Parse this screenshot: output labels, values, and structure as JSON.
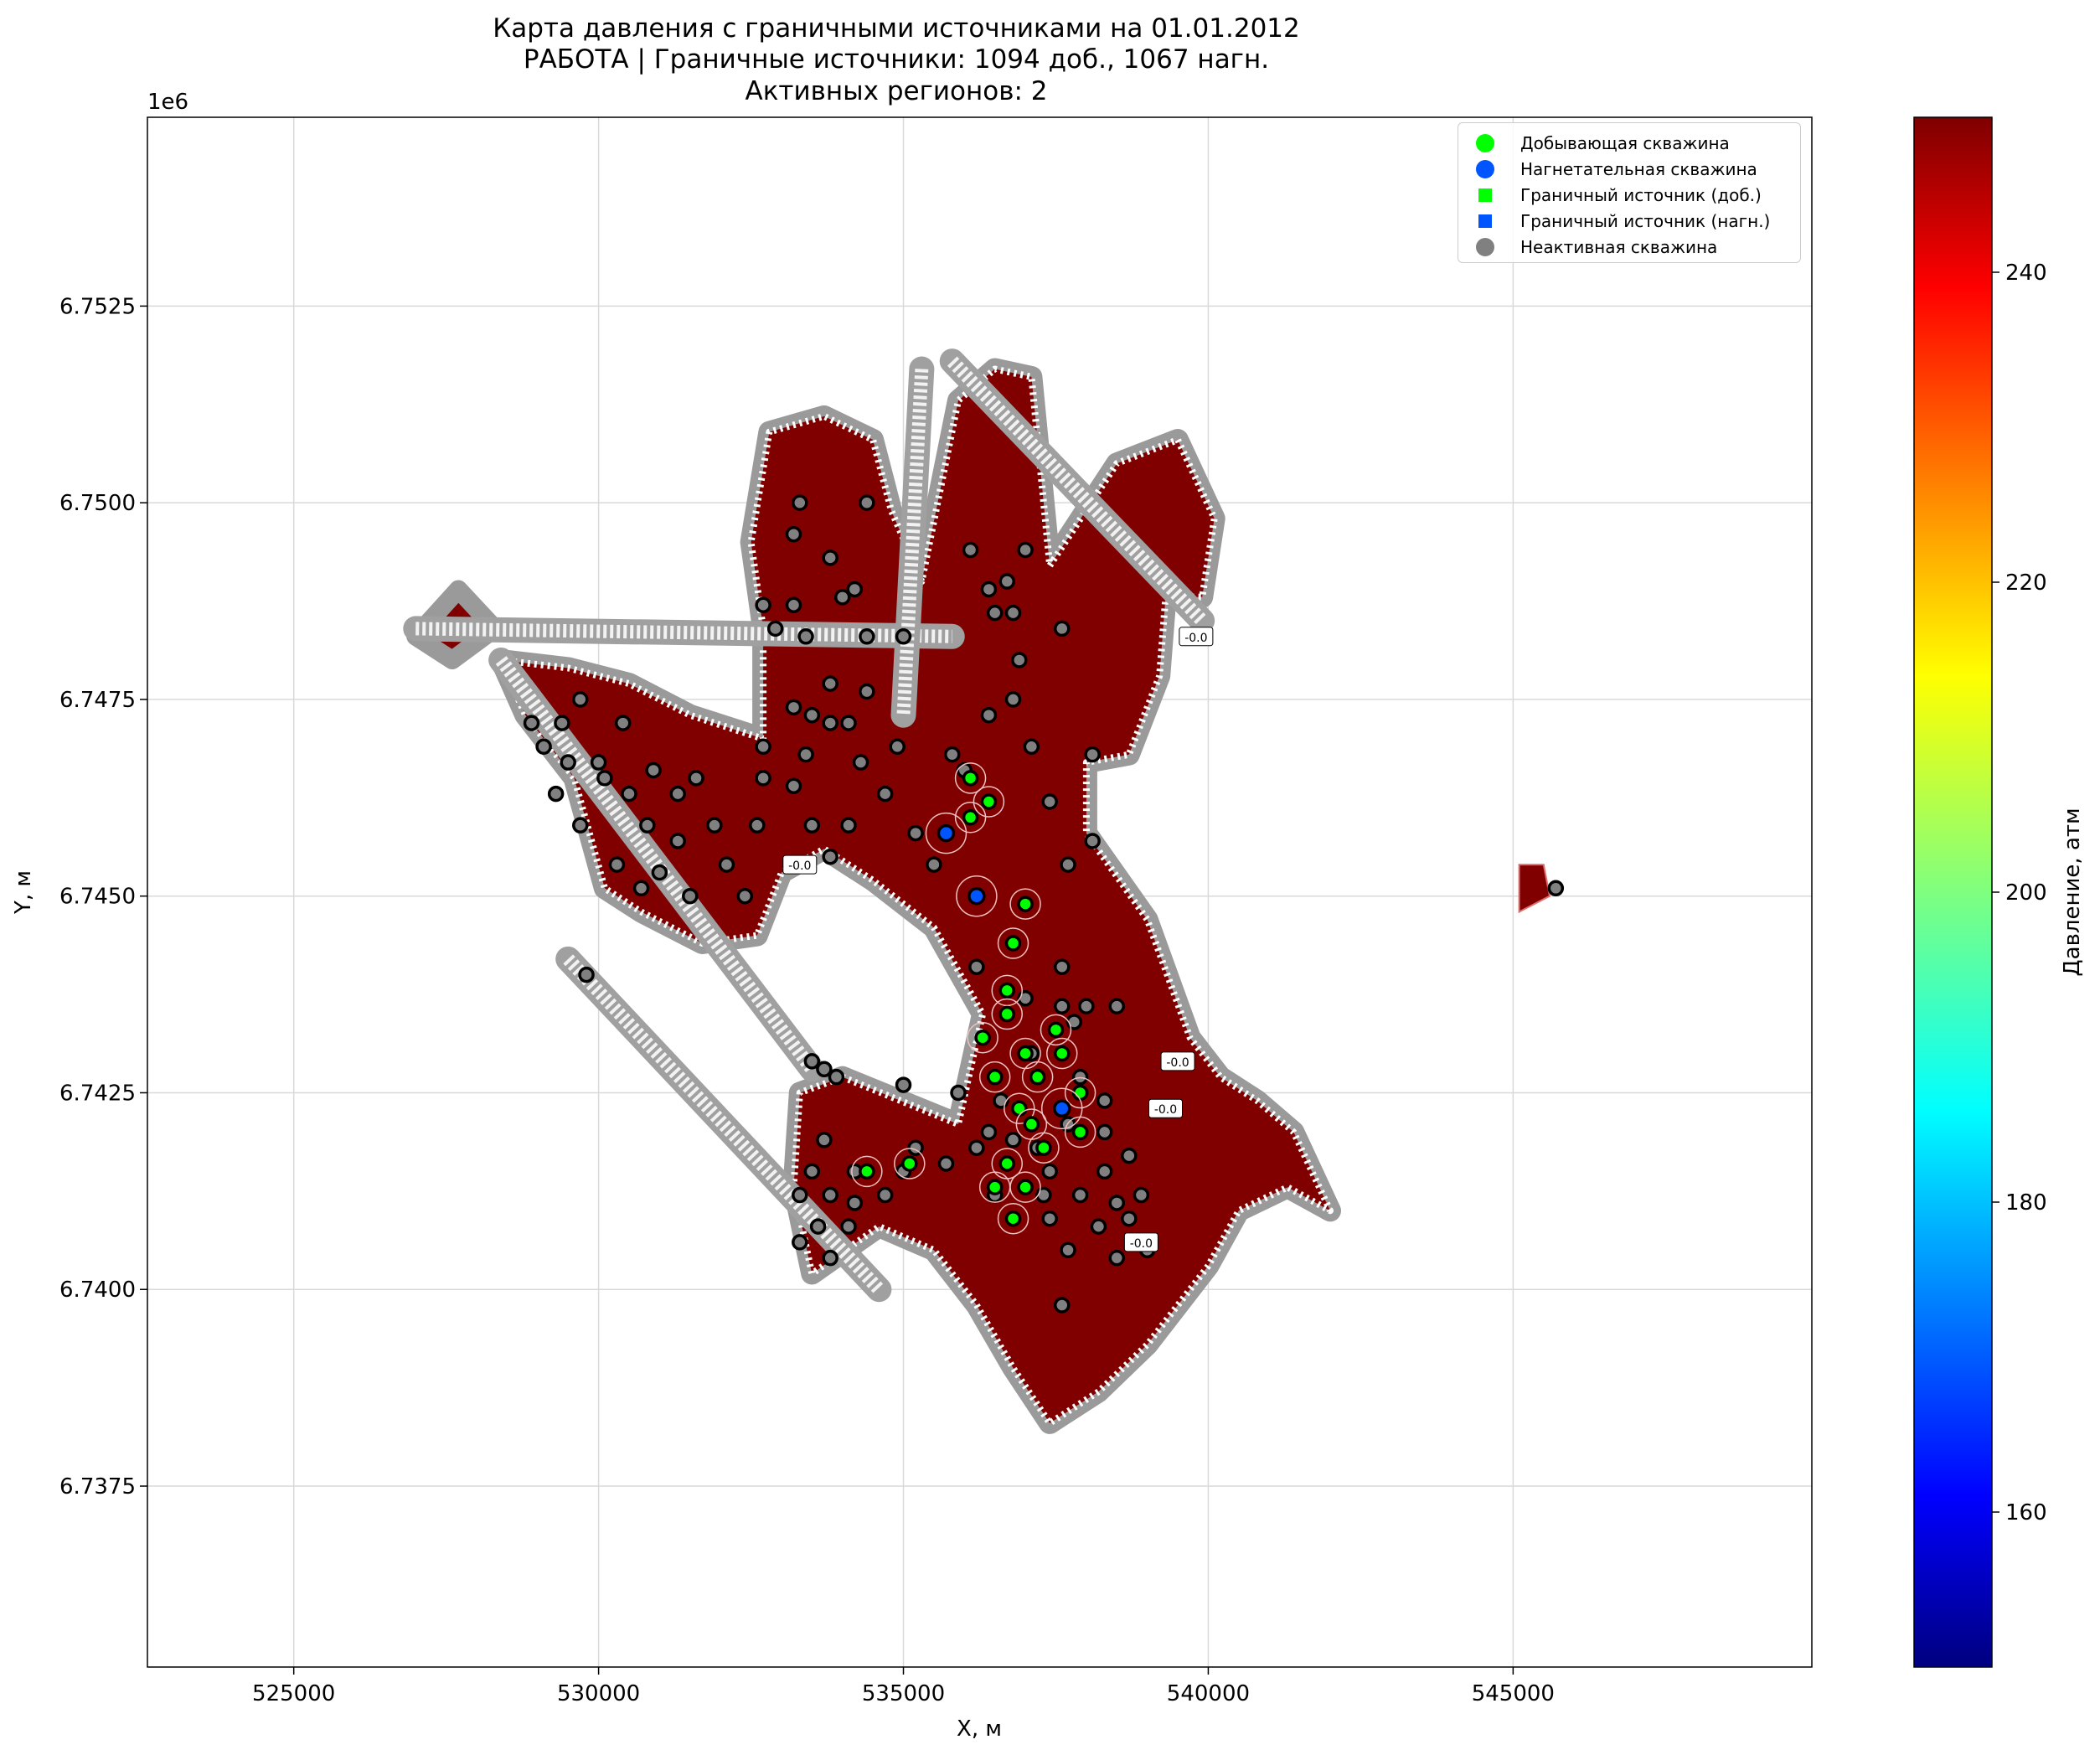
{
  "title": {
    "line1": "Карта давления с граничными источниками на 01.01.2012",
    "line2": "РАБОТА | Граничные источники: 1094 доб., 1067 нагн.",
    "line3": "Активных регионов: 2"
  },
  "chart_data": {
    "type": "heatmap",
    "xlabel": "X, м",
    "ylabel": "Y, м",
    "y_offset_label": "1e6",
    "xlim": [
      522600,
      549900
    ],
    "ylim": [
      6735200,
      6754900
    ],
    "x_ticks": [
      "525000",
      "530000",
      "535000",
      "540000",
      "545000"
    ],
    "x_tick_values": [
      525000,
      530000,
      535000,
      540000,
      545000
    ],
    "y_ticks": [
      "6.7375",
      "6.7400",
      "6.7425",
      "6.7450",
      "6.7475",
      "6.7500",
      "6.7525"
    ],
    "y_tick_values": [
      6737500,
      6740000,
      6742500,
      6745000,
      6747500,
      6750000,
      6752500
    ],
    "grid": true,
    "colorbar": {
      "label": "Давление, атм",
      "range": [
        150,
        250
      ],
      "colormap": "jet",
      "ticks": [
        "160",
        "180",
        "200",
        "220",
        "240"
      ],
      "tick_values": [
        160,
        180,
        200,
        220,
        240
      ]
    },
    "field_value_atm": 250,
    "field_color": "#800000",
    "legend": {
      "placement": "top-right",
      "entries": [
        {
          "label": "Добывающая скважина",
          "marker": "circle",
          "color": "#00ff00"
        },
        {
          "label": "Нагнетательная скважина",
          "marker": "circle",
          "color": "#0055ff"
        },
        {
          "label": "Граничный источник (доб.)",
          "marker": "square",
          "color": "#00ff00"
        },
        {
          "label": "Граничный источник (нагн.)",
          "marker": "square",
          "color": "#0055ff"
        },
        {
          "label": "Неактивная скважина",
          "marker": "circle",
          "color": "#808080"
        }
      ]
    },
    "main_region_outline": [
      [
        528400,
        6748000
      ],
      [
        529500,
        6747900
      ],
      [
        530500,
        6747700
      ],
      [
        531500,
        6747300
      ],
      [
        532700,
        6747000
      ],
      [
        532700,
        6748400
      ],
      [
        532500,
        6749500
      ],
      [
        532800,
        6750900
      ],
      [
        533700,
        6751100
      ],
      [
        534500,
        6750800
      ],
      [
        534800,
        6749900
      ],
      [
        535300,
        6749000
      ],
      [
        535900,
        6751300
      ],
      [
        536500,
        6751700
      ],
      [
        537100,
        6751600
      ],
      [
        537400,
        6749200
      ],
      [
        538500,
        6750500
      ],
      [
        539500,
        6750800
      ],
      [
        540100,
        6749800
      ],
      [
        539900,
        6748800
      ],
      [
        539300,
        6748800
      ],
      [
        539200,
        6747800
      ],
      [
        538700,
        6746800
      ],
      [
        538000,
        6746700
      ],
      [
        538000,
        6745800
      ],
      [
        539000,
        6744700
      ],
      [
        539700,
        6743200
      ],
      [
        540200,
        6742700
      ],
      [
        540800,
        6742400
      ],
      [
        541400,
        6742000
      ],
      [
        542000,
        6741000
      ],
      [
        541300,
        6741300
      ],
      [
        540500,
        6741000
      ],
      [
        540000,
        6740300
      ],
      [
        539000,
        6739300
      ],
      [
        538200,
        6738700
      ],
      [
        537400,
        6738300
      ],
      [
        536800,
        6739000
      ],
      [
        536200,
        6739800
      ],
      [
        535500,
        6740500
      ],
      [
        534600,
        6740800
      ],
      [
        533500,
        6740200
      ],
      [
        533200,
        6741300
      ],
      [
        533300,
        6742500
      ],
      [
        534000,
        6742700
      ],
      [
        535900,
        6742100
      ],
      [
        536300,
        6743500
      ],
      [
        535500,
        6744600
      ],
      [
        534500,
        6745200
      ],
      [
        533700,
        6745600
      ],
      [
        533000,
        6745300
      ],
      [
        532600,
        6744500
      ],
      [
        531700,
        6744400
      ],
      [
        530700,
        6744800
      ],
      [
        530100,
        6745100
      ],
      [
        529600,
        6746500
      ],
      [
        528800,
        6747300
      ]
    ],
    "top_left_lobe": [
      [
        527000,
        6748300
      ],
      [
        527700,
        6748900
      ],
      [
        528300,
        6748400
      ],
      [
        527600,
        6748000
      ]
    ],
    "east_region_outline": [
      [
        545100,
        6745400
      ],
      [
        545500,
        6745400
      ],
      [
        545600,
        6745000
      ],
      [
        545100,
        6744800
      ]
    ],
    "wells_inactive": [
      [
        533300,
        6750000
      ],
      [
        533200,
        6749600
      ],
      [
        534400,
        6750000
      ],
      [
        533800,
        6749300
      ],
      [
        534200,
        6748900
      ],
      [
        534000,
        6748800
      ],
      [
        532700,
        6748700
      ],
      [
        533200,
        6748700
      ],
      [
        532900,
        6748400
      ],
      [
        533400,
        6748300
      ],
      [
        534400,
        6748300
      ],
      [
        535000,
        6748300
      ],
      [
        536100,
        6749400
      ],
      [
        536700,
        6749000
      ],
      [
        537000,
        6749400
      ],
      [
        536400,
        6748900
      ],
      [
        536500,
        6748600
      ],
      [
        536800,
        6748600
      ],
      [
        537600,
        6748400
      ],
      [
        536900,
        6748000
      ],
      [
        533800,
        6747700
      ],
      [
        534400,
        6747600
      ],
      [
        529700,
        6747500
      ],
      [
        533200,
        6747400
      ],
      [
        533500,
        6747300
      ],
      [
        536400,
        6747300
      ],
      [
        536800,
        6747500
      ],
      [
        528900,
        6747200
      ],
      [
        529400,
        6747200
      ],
      [
        530400,
        6747200
      ],
      [
        533800,
        6747200
      ],
      [
        534100,
        6747200
      ],
      [
        529100,
        6746900
      ],
      [
        529500,
        6746700
      ],
      [
        530000,
        6746700
      ],
      [
        532700,
        6746900
      ],
      [
        533400,
        6746800
      ],
      [
        534300,
        6746700
      ],
      [
        534900,
        6746900
      ],
      [
        535800,
        6746800
      ],
      [
        536000,
        6746600
      ],
      [
        537100,
        6746900
      ],
      [
        538100,
        6746800
      ],
      [
        529300,
        6746300
      ],
      [
        530100,
        6746500
      ],
      [
        530500,
        6746300
      ],
      [
        530900,
        6746600
      ],
      [
        531300,
        6746300
      ],
      [
        531600,
        6746500
      ],
      [
        532700,
        6746500
      ],
      [
        533200,
        6746400
      ],
      [
        534700,
        6746300
      ],
      [
        537400,
        6746200
      ],
      [
        529700,
        6745900
      ],
      [
        530800,
        6745900
      ],
      [
        531300,
        6745700
      ],
      [
        531900,
        6745900
      ],
      [
        532600,
        6745900
      ],
      [
        533500,
        6745900
      ],
      [
        534100,
        6745900
      ],
      [
        535200,
        6745800
      ],
      [
        530300,
        6745400
      ],
      [
        530700,
        6745100
      ],
      [
        531000,
        6745300
      ],
      [
        531500,
        6745000
      ],
      [
        532100,
        6745400
      ],
      [
        532400,
        6745000
      ],
      [
        533800,
        6745500
      ],
      [
        535500,
        6745400
      ],
      [
        537700,
        6745400
      ],
      [
        538100,
        6745700
      ],
      [
        536200,
        6744100
      ],
      [
        537600,
        6744100
      ],
      [
        529800,
        6744000
      ],
      [
        537000,
        6743700
      ],
      [
        537600,
        6743600
      ],
      [
        538000,
        6743600
      ],
      [
        538500,
        6743600
      ],
      [
        537800,
        6743400
      ],
      [
        537100,
        6743000
      ],
      [
        533500,
        6742900
      ],
      [
        533700,
        6742800
      ],
      [
        533900,
        6742700
      ],
      [
        535000,
        6742600
      ],
      [
        535900,
        6742500
      ],
      [
        536600,
        6742400
      ],
      [
        537900,
        6742700
      ],
      [
        538300,
        6742400
      ],
      [
        533700,
        6741900
      ],
      [
        535200,
        6741800
      ],
      [
        535700,
        6741600
      ],
      [
        536200,
        6741800
      ],
      [
        536400,
        6742000
      ],
      [
        536800,
        6741900
      ],
      [
        537200,
        6741800
      ],
      [
        537700,
        6742100
      ],
      [
        538300,
        6742000
      ],
      [
        533500,
        6741500
      ],
      [
        534200,
        6741500
      ],
      [
        535000,
        6741500
      ],
      [
        537400,
        6741500
      ],
      [
        538300,
        6741500
      ],
      [
        538700,
        6741700
      ],
      [
        533300,
        6741200
      ],
      [
        533800,
        6741200
      ],
      [
        534200,
        6741100
      ],
      [
        534700,
        6741200
      ],
      [
        536500,
        6741200
      ],
      [
        537300,
        6741200
      ],
      [
        537900,
        6741200
      ],
      [
        538500,
        6741100
      ],
      [
        538900,
        6741200
      ],
      [
        533600,
        6740800
      ],
      [
        534100,
        6740800
      ],
      [
        537400,
        6740900
      ],
      [
        538200,
        6740800
      ],
      [
        538700,
        6740900
      ],
      [
        533300,
        6740600
      ],
      [
        533800,
        6740400
      ],
      [
        537700,
        6740500
      ],
      [
        538500,
        6740400
      ],
      [
        539000,
        6740500
      ],
      [
        537600,
        6739800
      ],
      [
        545700,
        6745100
      ]
    ],
    "wells_producing": [
      [
        536100,
        6746500
      ],
      [
        536400,
        6746200
      ],
      [
        536100,
        6746000
      ],
      [
        537000,
        6744900
      ],
      [
        536800,
        6744400
      ],
      [
        536700,
        6743800
      ],
      [
        536700,
        6743500
      ],
      [
        536300,
        6743200
      ],
      [
        537000,
        6743000
      ],
      [
        537600,
        6743000
      ],
      [
        537500,
        6743300
      ],
      [
        536500,
        6742700
      ],
      [
        537200,
        6742700
      ],
      [
        537900,
        6742500
      ],
      [
        536900,
        6742300
      ],
      [
        537100,
        6742100
      ],
      [
        537300,
        6741800
      ],
      [
        537900,
        6742000
      ],
      [
        536700,
        6741600
      ],
      [
        534400,
        6741500
      ],
      [
        535100,
        6741600
      ],
      [
        536500,
        6741300
      ],
      [
        537000,
        6741300
      ],
      [
        536800,
        6740900
      ]
    ],
    "wells_injection": [
      [
        535700,
        6745800
      ],
      [
        536200,
        6745000
      ],
      [
        537600,
        6742300
      ]
    ],
    "zero_labels": [
      {
        "text": "-0.0",
        "x": 539800,
        "y": 6748300
      },
      {
        "text": "-0.0",
        "x": 539500,
        "y": 6742900
      },
      {
        "text": "-0.0",
        "x": 539300,
        "y": 6742300
      },
      {
        "text": "-0.0",
        "x": 538900,
        "y": 6740600
      },
      {
        "text": "-0.0",
        "x": 533300,
        "y": 6745400
      }
    ]
  }
}
